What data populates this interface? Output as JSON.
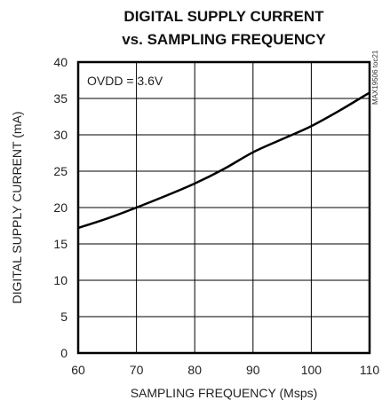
{
  "chart_data": {
    "type": "line",
    "title_line1": "DIGITAL SUPPLY CURRENT",
    "title_line2": "vs. SAMPLING FREQUENCY",
    "xlabel": "SAMPLING FREQUENCY (Msps)",
    "ylabel": "DIGITAL SUPPLY CURRENT (mA)",
    "annotation": "OVDD = 3.6V",
    "side_code": "MAX19506 toc21",
    "xlim": [
      60,
      110
    ],
    "ylim": [
      0,
      40
    ],
    "x_ticks": [
      60,
      70,
      80,
      90,
      100,
      110
    ],
    "y_ticks": [
      0,
      5,
      10,
      15,
      20,
      25,
      30,
      35,
      40
    ],
    "grid": true,
    "series": [
      {
        "x": [
          60,
          65,
          70,
          75,
          80,
          85,
          90,
          95,
          100,
          105,
          110
        ],
        "y": [
          17.2,
          18.5,
          20.0,
          21.6,
          23.3,
          25.3,
          27.6,
          29.4,
          31.2,
          33.4,
          35.8
        ]
      }
    ],
    "colors": {
      "line": "#000000",
      "grid": "#000000",
      "frame": "#000000"
    }
  }
}
